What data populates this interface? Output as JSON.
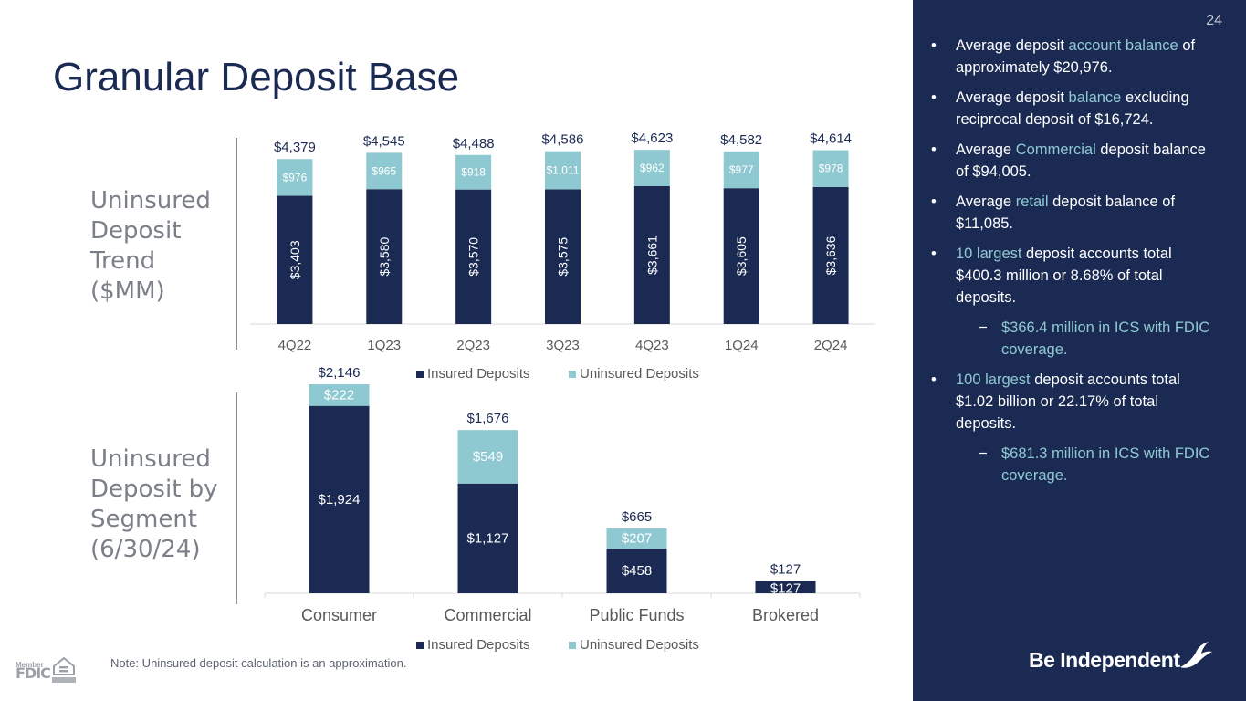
{
  "page_title": "Granular Deposit Base",
  "page_number": "24",
  "section_labels": {
    "trend": "Uninsured\nDeposit\nTrend\n($MM)",
    "segment": "Uninsured\nDeposit by\nSegment\n(6/30/24)"
  },
  "note": "Note: Uninsured deposit calculation is an approximation.",
  "fdic_logo": {
    "line1": "Member",
    "line2": "FDIC"
  },
  "ehl_logo_text": "EQUAL HOUSING LENDER",
  "brand": "Be Independent",
  "colors": {
    "navy": "#1b2a52",
    "teal": "#8ec9d2",
    "sidebar_bg": "#1b2a52"
  },
  "sidebar_bullets": [
    {
      "level": 1,
      "parts": [
        {
          "t": "Average deposit "
        },
        {
          "t": "account balance",
          "hl": true
        },
        {
          "t": " of approximately $20,976."
        }
      ]
    },
    {
      "level": 1,
      "parts": [
        {
          "t": "Average deposit "
        },
        {
          "t": "balance",
          "hl": true
        },
        {
          "t": " excluding reciprocal deposit of $16,724."
        }
      ]
    },
    {
      "level": 1,
      "parts": [
        {
          "t": "Average "
        },
        {
          "t": "Commercial",
          "hl": true
        },
        {
          "t": " deposit balance of $94,005."
        }
      ]
    },
    {
      "level": 1,
      "parts": [
        {
          "t": "Average "
        },
        {
          "t": "retail",
          "hl": true
        },
        {
          "t": " deposit balance of $11,085."
        }
      ]
    },
    {
      "level": 1,
      "parts": [
        {
          "t": "10 largest",
          "hl": true
        },
        {
          "t": " deposit accounts total $400.3 million or 8.68% of total deposits."
        }
      ]
    },
    {
      "level": 2,
      "parts": [
        {
          "t": "$366.4 million in ICS with FDIC coverage."
        }
      ]
    },
    {
      "level": 1,
      "parts": [
        {
          "t": "100 largest",
          "hl": true
        },
        {
          "t": " deposit accounts total $1.02 billion or 22.17% of total deposits."
        }
      ]
    },
    {
      "level": 2,
      "parts": [
        {
          "t": "$681.3 million in ICS with FDIC coverage."
        }
      ]
    }
  ],
  "chart_data": [
    {
      "type": "bar",
      "stacked": true,
      "title": "Uninsured Deposit Trend ($MM)",
      "categories": [
        "4Q22",
        "1Q23",
        "2Q23",
        "3Q23",
        "4Q23",
        "1Q24",
        "2Q24"
      ],
      "series": [
        {
          "name": "Insured Deposits",
          "color": "#1b2a52",
          "values": [
            3403,
            3580,
            3570,
            3575,
            3661,
            3605,
            3636
          ],
          "labels": [
            "$3,403",
            "$3,580",
            "$3,570",
            "$3,575",
            "$3,661",
            "$3,605",
            "$3,636"
          ]
        },
        {
          "name": "Uninsured Deposits",
          "color": "#8ec9d2",
          "values": [
            976,
            965,
            918,
            1011,
            962,
            977,
            978
          ],
          "labels": [
            "$976",
            "$965",
            "$918",
            "$1,011",
            "$962",
            "$977",
            "$978"
          ]
        }
      ],
      "totals": [
        "$4,379",
        "$4,545",
        "$4,488",
        "$4,586",
        "$4,623",
        "$4,582",
        "$4,614"
      ],
      "total_values": [
        4379,
        4545,
        4488,
        4586,
        4623,
        4582,
        4614
      ],
      "legend": [
        "Insured Deposits",
        "Uninsured Deposits"
      ],
      "legend_position": "bottom",
      "ylim": [
        0,
        4700
      ],
      "grid": false
    },
    {
      "type": "bar",
      "stacked": true,
      "title": "Uninsured Deposit by Segment (6/30/24)",
      "categories": [
        "Consumer",
        "Commercial",
        "Public Funds",
        "Brokered"
      ],
      "series": [
        {
          "name": "Insured Deposits",
          "color": "#1b2a52",
          "values": [
            1924,
            1127,
            458,
            127
          ],
          "labels": [
            "$1,924",
            "$1,127",
            "$458",
            "$127"
          ]
        },
        {
          "name": "Uninsured Deposits",
          "color": "#8ec9d2",
          "values": [
            222,
            549,
            207,
            0
          ],
          "labels": [
            "$222",
            "$549",
            "$207",
            ""
          ]
        }
      ],
      "totals": [
        "$2,146",
        "$1,676",
        "$665",
        "$127"
      ],
      "total_values": [
        2146,
        1676,
        665,
        127
      ],
      "legend": [
        "Insured Deposits",
        "Uninsured Deposits"
      ],
      "legend_position": "bottom",
      "ylim": [
        0,
        2146
      ],
      "grid": false
    }
  ]
}
